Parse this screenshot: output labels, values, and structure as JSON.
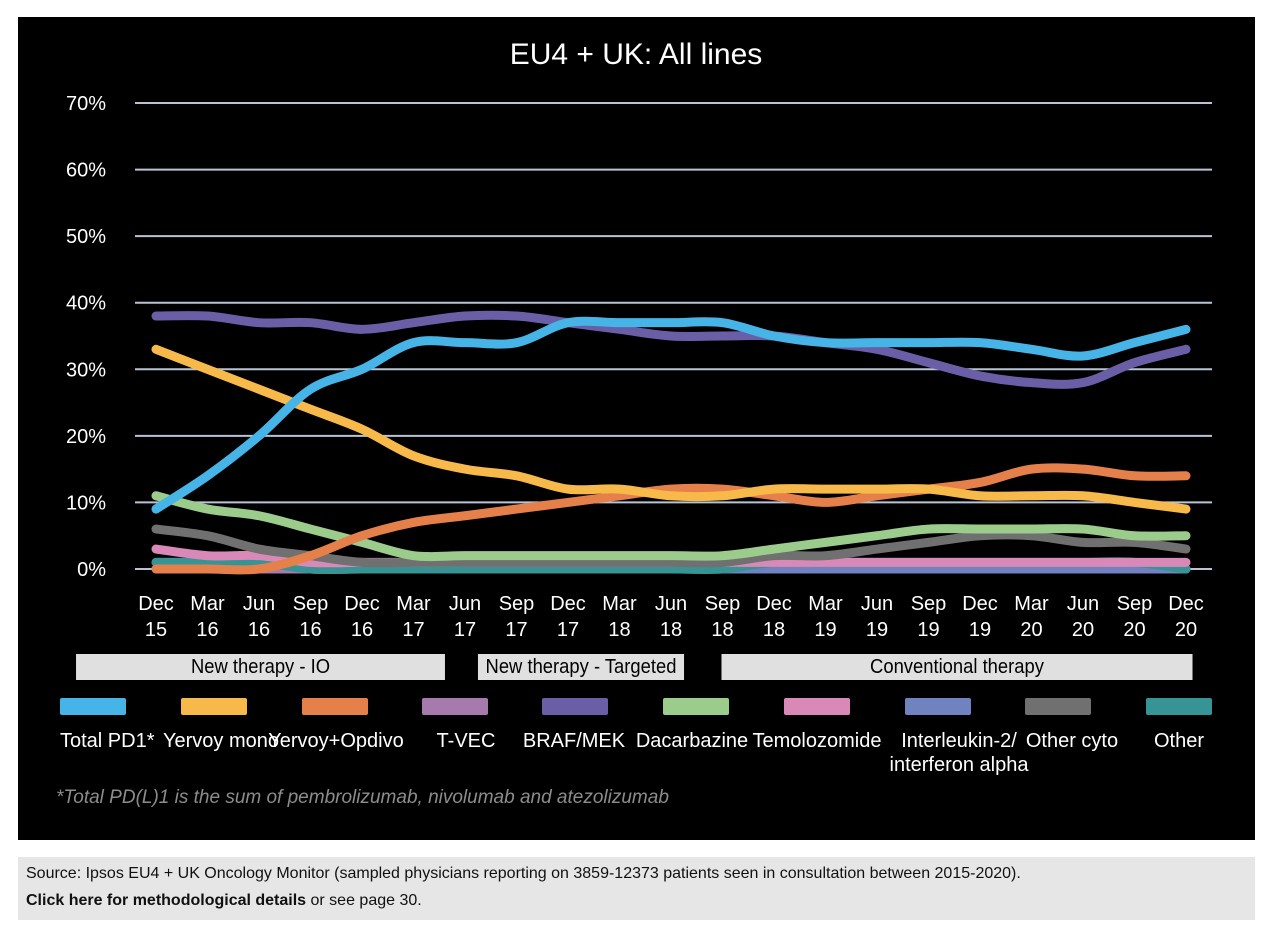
{
  "chart_data": {
    "type": "line",
    "title": "EU4 + UK: All lines",
    "ylim": [
      0,
      70
    ],
    "yticks": [
      "0%",
      "10%",
      "20%",
      "30%",
      "40%",
      "50%",
      "60%",
      "70%"
    ],
    "ytick_values": [
      0,
      10,
      20,
      30,
      40,
      50,
      60,
      70
    ],
    "categories": [
      [
        "Dec",
        "15"
      ],
      [
        "Mar",
        "16"
      ],
      [
        "Jun",
        "16"
      ],
      [
        "Sep",
        "16"
      ],
      [
        "Dec",
        "16"
      ],
      [
        "Mar",
        "17"
      ],
      [
        "Jun",
        "17"
      ],
      [
        "Sep",
        "17"
      ],
      [
        "Dec",
        "17"
      ],
      [
        "Mar",
        "18"
      ],
      [
        "Jun",
        "18"
      ],
      [
        "Sep",
        "18"
      ],
      [
        "Dec",
        "18"
      ],
      [
        "Mar",
        "19"
      ],
      [
        "Jun",
        "19"
      ],
      [
        "Sep",
        "19"
      ],
      [
        "Dec",
        "19"
      ],
      [
        "Mar",
        "20"
      ],
      [
        "Jun",
        "20"
      ],
      [
        "Sep",
        "20"
      ],
      [
        "Dec",
        "20"
      ]
    ],
    "series": [
      {
        "name": "Total PD1*",
        "color": "#46b4e6",
        "values": [
          9,
          14,
          20,
          27,
          30,
          34,
          34,
          34,
          37,
          37,
          37,
          37,
          35,
          34,
          34,
          34,
          34,
          33,
          32,
          34,
          36
        ]
      },
      {
        "name": "Yervoy mono",
        "color": "#f6b94a",
        "values": [
          33,
          30,
          27,
          24,
          21,
          17,
          15,
          14,
          12,
          12,
          11,
          11,
          12,
          12,
          12,
          12,
          11,
          11,
          11,
          10,
          9
        ]
      },
      {
        "name": "Yervoy+Opdivo",
        "color": "#e6804a",
        "values": [
          0,
          0,
          0,
          2,
          5,
          7,
          8,
          9,
          10,
          11,
          12,
          12,
          11,
          10,
          11,
          12,
          13,
          15,
          15,
          14,
          14
        ]
      },
      {
        "name": "T-VEC",
        "color": "#a67aac",
        "values": [
          0,
          0,
          0,
          0,
          0,
          0,
          0,
          0,
          0,
          0,
          0,
          0,
          0,
          0,
          0,
          0,
          0,
          0,
          0,
          0,
          0
        ]
      },
      {
        "name": "BRAF/MEK",
        "color": "#6a5ea6",
        "values": [
          38,
          38,
          37,
          37,
          36,
          37,
          38,
          38,
          37,
          36,
          35,
          35,
          35,
          34,
          33,
          31,
          29,
          28,
          28,
          31,
          33
        ]
      },
      {
        "name": "Dacarbazine",
        "color": "#9ccc8c",
        "values": [
          11,
          9,
          8,
          6,
          4,
          2,
          2,
          2,
          2,
          2,
          2,
          2,
          3,
          4,
          5,
          6,
          6,
          6,
          6,
          5,
          5
        ]
      },
      {
        "name": "Temolozomide",
        "color": "#d889b8",
        "values": [
          3,
          2,
          2,
          1,
          1,
          1,
          1,
          1,
          1,
          1,
          1,
          1,
          1,
          1,
          1,
          1,
          1,
          1,
          1,
          1,
          1
        ]
      },
      {
        "name": "Interleukin-2/ interferon alpha",
        "color": "#7082c0",
        "values": [
          1,
          1,
          1,
          0,
          0,
          0,
          0,
          0,
          0,
          0,
          0,
          0,
          0,
          0,
          0,
          0,
          0,
          0,
          0,
          0,
          0
        ]
      },
      {
        "name": "Other cyto",
        "color": "#707070",
        "values": [
          6,
          5,
          3,
          2,
          1,
          1,
          1,
          1,
          1,
          1,
          1,
          1,
          2,
          2,
          3,
          4,
          5,
          5,
          4,
          4,
          3
        ]
      },
      {
        "name": "Other",
        "color": "#379494",
        "values": [
          1,
          1,
          1,
          0,
          0,
          0,
          0,
          0,
          0,
          0,
          0,
          0,
          1,
          1,
          1,
          1,
          1,
          1,
          1,
          1,
          0
        ]
      }
    ],
    "bands": [
      "New therapy - IO",
      "New therapy - Targeted",
      "Conventional therapy"
    ],
    "legend_labels": [
      "Total PD1*",
      "Yervoy mono",
      "Yervoy+Opdivo",
      "T-VEC",
      "BRAF/MEK",
      "Dacarbazine",
      "Temolozomide",
      "Interleukin-2/",
      "Other cyto",
      "Other"
    ],
    "legend_label_line2": "interferon alpha",
    "footnote": "*Total PD(L)1 is the sum of pembrolizumab, nivolumab and atezolizumab"
  },
  "source": {
    "text": "Source: Ipsos EU4 + UK Oncology Monitor (sampled physicians reporting on 3859-12373 patients seen in consultation between 2015-2020).",
    "link_label": "Click here for methodological details",
    "suffix": " or see page 30."
  }
}
